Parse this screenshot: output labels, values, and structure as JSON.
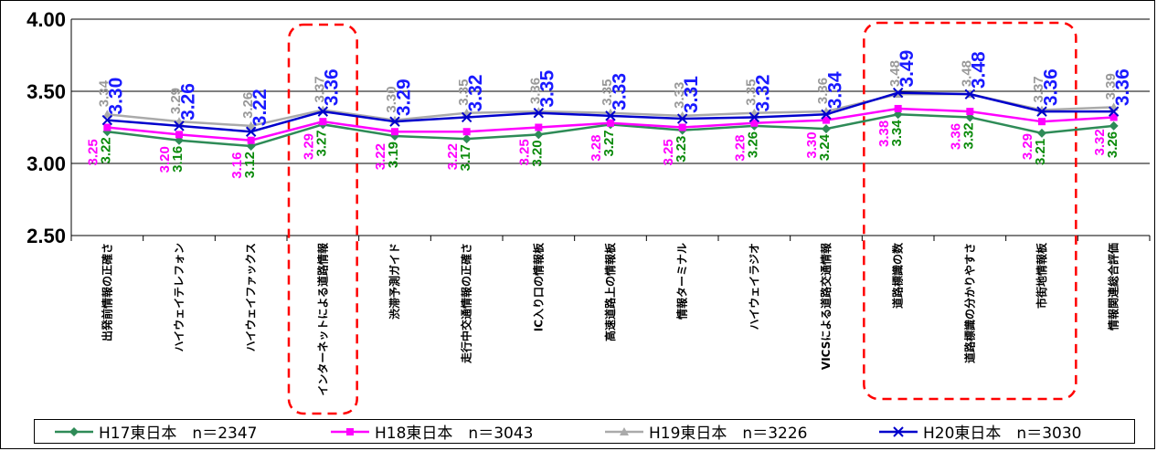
{
  "chart_data": {
    "type": "line",
    "categories": [
      "出発前情報の正確さ",
      "ハイウェイテレフォン",
      "ハイウェイファックス",
      "インターネットによる道路情報",
      "渋滞予測ガイド",
      "走行中交通情報の正確さ",
      "IC入り口の情報板",
      "高速道路上の情報板",
      "情報ターミナル",
      "ハイウェイラジオ",
      "VICSによる道路交通情報",
      "道路標識の数",
      "道路標識の分かりやすさ",
      "市街地情報板",
      "情報関連総合評価"
    ],
    "ylim": [
      2.5,
      4.0
    ],
    "yticks": [
      "2.50",
      "3.00",
      "3.50",
      "4.00"
    ],
    "grid": true,
    "legend_position": "bottom",
    "series": [
      {
        "name": "H17東日本　n＝2347",
        "color": "#2e8b57",
        "marker": "diamond",
        "label_color": "#0a8a0a",
        "values": [
          3.22,
          3.16,
          3.12,
          3.27,
          3.19,
          3.17,
          3.2,
          3.27,
          3.23,
          3.26,
          3.24,
          3.34,
          3.32,
          3.21,
          3.26
        ],
        "labels": [
          "3.22",
          "3.16",
          "3.12",
          "3.27",
          "3.19",
          "3.17",
          "3.20",
          "3.27",
          "3.23",
          "3.26",
          "3.24",
          "3.34",
          "3.32",
          "3.21",
          "3.26"
        ]
      },
      {
        "name": "H18東日本　n＝3043",
        "color": "#ff00ff",
        "marker": "square",
        "label_color": "#ff00ff",
        "values": [
          3.25,
          3.2,
          3.16,
          3.29,
          3.22,
          3.22,
          3.25,
          3.28,
          3.25,
          3.28,
          3.3,
          3.38,
          3.36,
          3.29,
          3.32
        ],
        "labels": [
          "3.25",
          "3.20",
          "3.16",
          "3.29",
          "3.22",
          "3.22",
          "3.25",
          "3.28",
          "3.25",
          "3.28",
          "3.30",
          "3.38",
          "3.36",
          "3.29",
          "3.32"
        ]
      },
      {
        "name": "H19東日本　n＝3226",
        "color": "#aaaaaa",
        "marker": "triangle",
        "label_color": "#999999",
        "values": [
          3.34,
          3.29,
          3.26,
          3.37,
          3.3,
          3.35,
          3.36,
          3.35,
          3.33,
          3.35,
          3.36,
          3.48,
          3.48,
          3.37,
          3.39
        ],
        "labels": [
          "3.34",
          "3.29",
          "3.26",
          "3.37",
          "3.30",
          "3.35",
          "3.36",
          "3.35",
          "3.33",
          "3.35",
          "3.36",
          "3.48",
          "3.48",
          "3.37",
          "3.39"
        ]
      },
      {
        "name": "H20東日本　n＝3030",
        "color": "#0000cc",
        "marker": "x",
        "label_color": "#1a1aff",
        "values": [
          3.3,
          3.26,
          3.22,
          3.36,
          3.29,
          3.32,
          3.35,
          3.33,
          3.31,
          3.32,
          3.34,
          3.49,
          3.48,
          3.36,
          3.36
        ],
        "labels": [
          "3.30",
          "3.26",
          "3.22",
          "3.36",
          "3.29",
          "3.32",
          "3.35",
          "3.33",
          "3.31",
          "3.32",
          "3.34",
          "3.49",
          "3.48",
          "3.36",
          "3.36"
        ]
      }
    ]
  }
}
